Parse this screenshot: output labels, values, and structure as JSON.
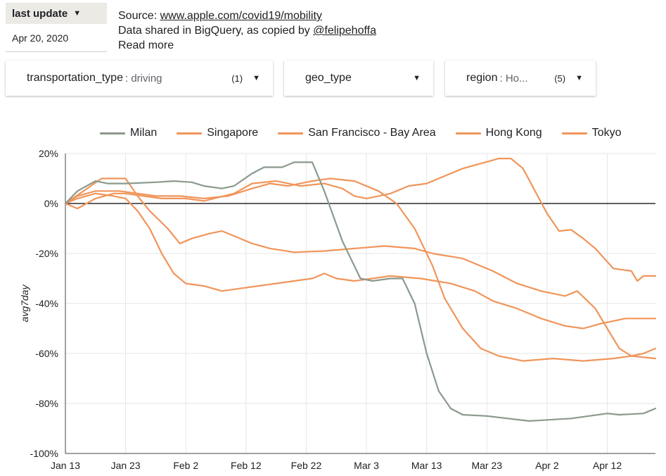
{
  "last_update": {
    "label": "last update",
    "date": "Apr 20, 2020"
  },
  "source": {
    "prefix": "Source: ",
    "link": "www.apple.com/covid19/mobility",
    "line2_prefix": "Data shared in BigQuery, as copied by ",
    "line2_link": "@felipehoffa",
    "read_more": "Read more"
  },
  "filters": [
    {
      "key": "transportation_type",
      "value": ": driving",
      "count": "(1)"
    },
    {
      "key": "geo_type",
      "value": "",
      "count": ""
    },
    {
      "key": "region",
      "value": ": Ho...",
      "count": "(5)"
    }
  ],
  "colors": {
    "milan": "#8a9a8c",
    "orange": "#f0955a",
    "axis": "#000000",
    "grid": "#e6e6e6"
  },
  "chart_data": {
    "type": "line",
    "ylabel": "avg7day",
    "ylim": [
      -100,
      20
    ],
    "yticks": [
      20,
      0,
      -20,
      -40,
      -60,
      -80,
      -100
    ],
    "ytick_labels": [
      "20%",
      "0%",
      "-20%",
      "-40%",
      "-60%",
      "-80%",
      "-100%"
    ],
    "xlim": [
      "2020-01-13",
      "2020-04-20"
    ],
    "xticks": [
      "2020-01-13",
      "2020-01-23",
      "2020-02-02",
      "2020-02-12",
      "2020-02-22",
      "2020-03-03",
      "2020-03-13",
      "2020-03-23",
      "2020-04-02",
      "2020-04-12"
    ],
    "xtick_labels": [
      "Jan 13",
      "Jan 23",
      "Feb 2",
      "Feb 12",
      "Feb 22",
      "Mar 3",
      "Mar 13",
      "Mar 23",
      "Apr 2",
      "Apr 12"
    ],
    "grid": true,
    "legend": "top",
    "series": [
      {
        "name": "Milan",
        "color": "#8a9a8c",
        "points": [
          [
            "2020-01-13",
            0
          ],
          [
            "2020-01-15",
            5
          ],
          [
            "2020-01-18",
            9
          ],
          [
            "2020-01-20",
            8
          ],
          [
            "2020-01-23",
            8
          ],
          [
            "2020-01-28",
            8.5
          ],
          [
            "2020-01-31",
            9
          ],
          [
            "2020-02-03",
            8.5
          ],
          [
            "2020-02-05",
            7
          ],
          [
            "2020-02-08",
            6
          ],
          [
            "2020-02-10",
            7
          ],
          [
            "2020-02-13",
            12
          ],
          [
            "2020-02-15",
            14.5
          ],
          [
            "2020-02-18",
            14.5
          ],
          [
            "2020-02-20",
            16.5
          ],
          [
            "2020-02-23",
            16.5
          ],
          [
            "2020-02-25",
            5
          ],
          [
            "2020-02-28",
            -15
          ],
          [
            "2020-03-02",
            -30
          ],
          [
            "2020-03-04",
            -31
          ],
          [
            "2020-03-07",
            -30
          ],
          [
            "2020-03-09",
            -30
          ],
          [
            "2020-03-11",
            -40
          ],
          [
            "2020-03-13",
            -60
          ],
          [
            "2020-03-15",
            -75
          ],
          [
            "2020-03-17",
            -82
          ],
          [
            "2020-03-19",
            -84.5
          ],
          [
            "2020-03-23",
            -85
          ],
          [
            "2020-03-30",
            -87
          ],
          [
            "2020-04-06",
            -86
          ],
          [
            "2020-04-12",
            -84
          ],
          [
            "2020-04-14",
            -84.5
          ],
          [
            "2020-04-18",
            -84
          ],
          [
            "2020-04-20",
            -82
          ]
        ]
      },
      {
        "name": "Singapore",
        "color": "#f0955a",
        "points": [
          [
            "2020-01-13",
            0
          ],
          [
            "2020-01-16",
            5
          ],
          [
            "2020-01-19",
            10
          ],
          [
            "2020-01-23",
            10
          ],
          [
            "2020-01-25",
            3
          ],
          [
            "2020-01-27",
            -3
          ],
          [
            "2020-01-30",
            -10
          ],
          [
            "2020-02-01",
            -16
          ],
          [
            "2020-02-03",
            -14
          ],
          [
            "2020-02-06",
            -12
          ],
          [
            "2020-02-08",
            -11
          ],
          [
            "2020-02-10",
            -13
          ],
          [
            "2020-02-13",
            -16
          ],
          [
            "2020-02-16",
            -18
          ],
          [
            "2020-02-20",
            -19.5
          ],
          [
            "2020-02-25",
            -19
          ],
          [
            "2020-03-01",
            -18
          ],
          [
            "2020-03-06",
            -17
          ],
          [
            "2020-03-11",
            -18
          ],
          [
            "2020-03-14",
            -20
          ],
          [
            "2020-03-19",
            -22
          ],
          [
            "2020-03-24",
            -27
          ],
          [
            "2020-03-28",
            -32
          ],
          [
            "2020-04-01",
            -35
          ],
          [
            "2020-04-05",
            -37
          ],
          [
            "2020-04-07",
            -35
          ],
          [
            "2020-04-10",
            -42
          ],
          [
            "2020-04-12",
            -50
          ],
          [
            "2020-04-14",
            -58
          ],
          [
            "2020-04-16",
            -61
          ],
          [
            "2020-04-18",
            -60
          ],
          [
            "2020-04-20",
            -58
          ]
        ]
      },
      {
        "name": "San Francisco - Bay Area",
        "color": "#f0955a",
        "points": [
          [
            "2020-01-13",
            0
          ],
          [
            "2020-01-15",
            3
          ],
          [
            "2020-01-18",
            5
          ],
          [
            "2020-01-22",
            5
          ],
          [
            "2020-01-25",
            4
          ],
          [
            "2020-01-28",
            3
          ],
          [
            "2020-02-01",
            3
          ],
          [
            "2020-02-05",
            2
          ],
          [
            "2020-02-09",
            3
          ],
          [
            "2020-02-13",
            6
          ],
          [
            "2020-02-16",
            8
          ],
          [
            "2020-02-19",
            7
          ],
          [
            "2020-02-23",
            9
          ],
          [
            "2020-02-26",
            10
          ],
          [
            "2020-03-01",
            9
          ],
          [
            "2020-03-05",
            5
          ],
          [
            "2020-03-08",
            0
          ],
          [
            "2020-03-11",
            -10
          ],
          [
            "2020-03-14",
            -25
          ],
          [
            "2020-03-16",
            -38
          ],
          [
            "2020-03-19",
            -50
          ],
          [
            "2020-03-22",
            -58
          ],
          [
            "2020-03-25",
            -61
          ],
          [
            "2020-03-29",
            -63
          ],
          [
            "2020-04-03",
            -62
          ],
          [
            "2020-04-08",
            -63
          ],
          [
            "2020-04-13",
            -62
          ],
          [
            "2020-04-16",
            -61
          ],
          [
            "2020-04-20",
            -62
          ]
        ]
      },
      {
        "name": "Hong Kong",
        "color": "#f0955a",
        "points": [
          [
            "2020-01-13",
            0
          ],
          [
            "2020-01-15",
            -2
          ],
          [
            "2020-01-18",
            2
          ],
          [
            "2020-01-21",
            4
          ],
          [
            "2020-01-23",
            4
          ],
          [
            "2020-01-26",
            3
          ],
          [
            "2020-01-29",
            2
          ],
          [
            "2020-02-02",
            2
          ],
          [
            "2020-02-05",
            1
          ],
          [
            "2020-02-10",
            4
          ],
          [
            "2020-02-13",
            8
          ],
          [
            "2020-02-17",
            9
          ],
          [
            "2020-02-21",
            7
          ],
          [
            "2020-02-25",
            8
          ],
          [
            "2020-02-28",
            6
          ],
          [
            "2020-03-01",
            3
          ],
          [
            "2020-03-03",
            2
          ],
          [
            "2020-03-05",
            3
          ],
          [
            "2020-03-07",
            4
          ],
          [
            "2020-03-10",
            7
          ],
          [
            "2020-03-13",
            8
          ],
          [
            "2020-03-16",
            11
          ],
          [
            "2020-03-19",
            14
          ],
          [
            "2020-03-22",
            16
          ],
          [
            "2020-03-25",
            18
          ],
          [
            "2020-03-27",
            18
          ],
          [
            "2020-03-29",
            14
          ],
          [
            "2020-03-31",
            5
          ],
          [
            "2020-04-02",
            -4
          ],
          [
            "2020-04-04",
            -11
          ],
          [
            "2020-04-06",
            -10.5
          ],
          [
            "2020-04-08",
            -14
          ],
          [
            "2020-04-10",
            -18
          ],
          [
            "2020-04-13",
            -26
          ],
          [
            "2020-04-16",
            -27
          ],
          [
            "2020-04-17",
            -31
          ],
          [
            "2020-04-18",
            -29
          ],
          [
            "2020-04-20",
            -29
          ]
        ]
      },
      {
        "name": "Tokyo",
        "color": "#f0955a",
        "points": [
          [
            "2020-01-13",
            0
          ],
          [
            "2020-01-15",
            2
          ],
          [
            "2020-01-18",
            4
          ],
          [
            "2020-01-21",
            3
          ],
          [
            "2020-01-23",
            2
          ],
          [
            "2020-01-25",
            -3
          ],
          [
            "2020-01-27",
            -10
          ],
          [
            "2020-01-29",
            -20
          ],
          [
            "2020-01-31",
            -28
          ],
          [
            "2020-02-02",
            -32
          ],
          [
            "2020-02-05",
            -33
          ],
          [
            "2020-02-08",
            -35
          ],
          [
            "2020-02-11",
            -34
          ],
          [
            "2020-02-14",
            -33
          ],
          [
            "2020-02-17",
            -32
          ],
          [
            "2020-02-20",
            -31
          ],
          [
            "2020-02-23",
            -30
          ],
          [
            "2020-02-25",
            -28
          ],
          [
            "2020-02-27",
            -30
          ],
          [
            "2020-03-01",
            -31
          ],
          [
            "2020-03-04",
            -30
          ],
          [
            "2020-03-07",
            -29
          ],
          [
            "2020-03-12",
            -30
          ],
          [
            "2020-03-17",
            -32
          ],
          [
            "2020-03-21",
            -35
          ],
          [
            "2020-03-24",
            -39
          ],
          [
            "2020-03-28",
            -42
          ],
          [
            "2020-04-01",
            -46
          ],
          [
            "2020-04-05",
            -49
          ],
          [
            "2020-04-08",
            -50
          ],
          [
            "2020-04-11",
            -48
          ],
          [
            "2020-04-13",
            -47
          ],
          [
            "2020-04-15",
            -46
          ],
          [
            "2020-04-18",
            -46
          ],
          [
            "2020-04-20",
            -46
          ]
        ]
      }
    ]
  }
}
